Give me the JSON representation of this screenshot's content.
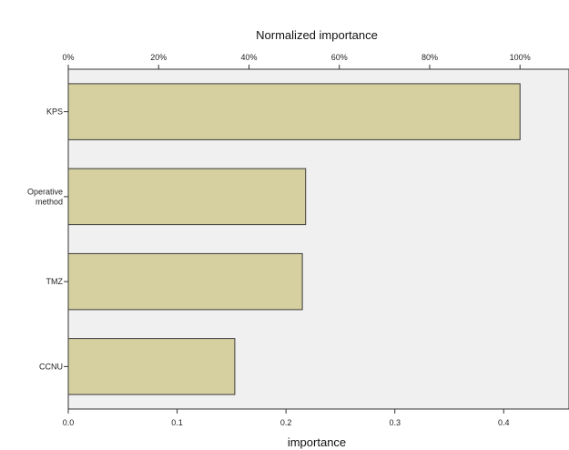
{
  "chart_data": {
    "type": "bar",
    "orientation": "horizontal",
    "categories": [
      [
        "KPS"
      ],
      [
        "Operative",
        "method"
      ],
      [
        "TMZ"
      ],
      [
        "CCNU"
      ]
    ],
    "values": [
      0.415,
      0.218,
      0.215,
      0.153
    ],
    "xlabel": "importance",
    "x2label": "Normalized importance",
    "xlim": [
      0,
      0.46
    ],
    "xticks": [
      0.0,
      0.1,
      0.2,
      0.3,
      0.4
    ],
    "xtick_labels": [
      "0.0",
      "0.1",
      "0.2",
      "0.3",
      "0.4"
    ],
    "x2ticks": [
      0,
      20,
      40,
      60,
      80,
      100
    ],
    "x2tick_labels": [
      "0%",
      "20%",
      "40%",
      "60%",
      "80%",
      "100%"
    ],
    "x2_full_scale_value": 0.415,
    "grid": false,
    "legend": "none",
    "colors": {
      "bar_fill": "#d6d0a0",
      "plot_background": "#f0f0f0"
    }
  }
}
